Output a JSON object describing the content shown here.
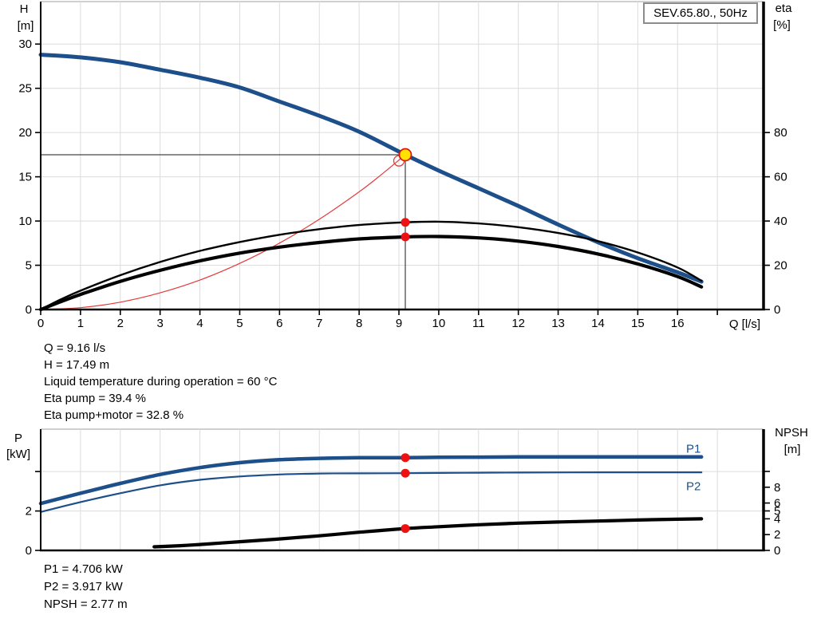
{
  "colors": {
    "curve_blue": "#1d4f8a",
    "marker_red": "#ee1111",
    "duty_yellow": "#ffe200",
    "system_red": "#e43a3a",
    "grid_gray": "#dcdcdc",
    "border_gray": "#b4b4b4",
    "axis_black": "#000000",
    "box_border_gray": "#8c8c8c"
  },
  "results_top": {
    "q": "Q = 9.16 l/s",
    "h": "H = 17.49 m",
    "temp": "Liquid temperature during operation = 60 °C",
    "eta_pump": "Eta pump = 39.4 %",
    "eta_pump_motor": "Eta pump+motor = 32.8 %"
  },
  "results_bottom": {
    "p1": "P1 = 4.706 kW",
    "p2": "P2 = 3.917 kW",
    "npsh": "NPSH = 2.77 m"
  },
  "chart_data": [
    {
      "id": "top",
      "type": "line",
      "title": "SEV.65.80., 50Hz",
      "x_axis": {
        "label": "Q [l/s]",
        "min": 0,
        "max": 18.16,
        "ticks": [
          {
            "v": 0,
            "t": "0"
          },
          {
            "v": 1,
            "t": "1"
          },
          {
            "v": 2,
            "t": "2"
          },
          {
            "v": 3,
            "t": "3"
          },
          {
            "v": 4,
            "t": "4"
          },
          {
            "v": 5,
            "t": "5"
          },
          {
            "v": 6,
            "t": "6"
          },
          {
            "v": 7,
            "t": "7"
          },
          {
            "v": 8,
            "t": "8"
          },
          {
            "v": 9,
            "t": "9"
          },
          {
            "v": 10,
            "t": "10"
          },
          {
            "v": 11,
            "t": "11"
          },
          {
            "v": 12,
            "t": "12"
          },
          {
            "v": 13,
            "t": "13"
          },
          {
            "v": 14,
            "t": "14"
          },
          {
            "v": 15,
            "t": "15"
          },
          {
            "v": 16,
            "t": "16"
          },
          {
            "v": 17,
            "t": ""
          }
        ],
        "grid": [
          1,
          2,
          3,
          4,
          5,
          6,
          7,
          8,
          9,
          10,
          11,
          12,
          13,
          14,
          15,
          16,
          17
        ]
      },
      "y_left": {
        "label_lines": [
          "H",
          "[m]"
        ],
        "min": 0,
        "max": 34.8,
        "ticks": [
          {
            "v": 0,
            "t": "0"
          },
          {
            "v": 5,
            "t": "5"
          },
          {
            "v": 10,
            "t": "10"
          },
          {
            "v": 15,
            "t": "15"
          },
          {
            "v": 20,
            "t": "20"
          },
          {
            "v": 25,
            "t": "25"
          },
          {
            "v": 30,
            "t": "30"
          }
        ],
        "grid": [
          5,
          10,
          15,
          20,
          25,
          30
        ]
      },
      "y_right": {
        "label_lines": [
          "eta",
          "[%]"
        ],
        "min": 0,
        "max": 139.2,
        "ticks": [
          {
            "v": 0,
            "t": "0"
          },
          {
            "v": 20,
            "t": "20"
          },
          {
            "v": 40,
            "t": "40"
          },
          {
            "v": 60,
            "t": "60"
          },
          {
            "v": 80,
            "t": "80"
          }
        ]
      },
      "guides": [
        {
          "name": "duty-h-guide",
          "type": "h",
          "v": 17.49,
          "q1": 0,
          "q2": 9.16
        },
        {
          "name": "duty-v-guide",
          "type": "v",
          "q": 9.16,
          "v1": 0,
          "v2": 17.49
        }
      ],
      "series": [
        {
          "name": "pump-head-curve",
          "axis": "left",
          "color": "#1d4f8a",
          "width": 5,
          "points": [
            [
              0,
              28.8
            ],
            [
              1,
              28.5
            ],
            [
              2,
              27.95
            ],
            [
              3,
              27.1
            ],
            [
              4,
              26.2
            ],
            [
              5,
              25.1
            ],
            [
              6,
              23.5
            ],
            [
              7,
              21.9
            ],
            [
              8,
              20.1
            ],
            [
              9.16,
              17.49
            ],
            [
              10,
              15.7
            ],
            [
              11,
              13.7
            ],
            [
              12,
              11.7
            ],
            [
              13,
              9.6
            ],
            [
              14,
              7.6
            ],
            [
              15,
              5.8
            ],
            [
              16,
              4.2
            ],
            [
              16.6,
              3.15
            ]
          ]
        },
        {
          "name": "system-curve",
          "axis": "left",
          "color": "#e43a3a",
          "width": 1.2,
          "points": [
            [
              0,
              0
            ],
            [
              1,
              0.21
            ],
            [
              2,
              0.83
            ],
            [
              3,
              1.88
            ],
            [
              4,
              3.33
            ],
            [
              5,
              5.21
            ],
            [
              6,
              7.5
            ],
            [
              7,
              10.2
            ],
            [
              8,
              13.3
            ],
            [
              8.6,
              15.4
            ],
            [
              9.16,
              17.49
            ]
          ]
        },
        {
          "name": "eta-pump-curve",
          "axis": "right",
          "color": "#000000",
          "width": 2.4,
          "points": [
            [
              0,
              0
            ],
            [
              0.5,
              4.5
            ],
            [
              1,
              8.5
            ],
            [
              2,
              15.5
            ],
            [
              3,
              21.5
            ],
            [
              4,
              26.5
            ],
            [
              5,
              30.5
            ],
            [
              6,
              33.8
            ],
            [
              7,
              36.3
            ],
            [
              8,
              38.2
            ],
            [
              9.16,
              39.4
            ],
            [
              10,
              39.7
            ],
            [
              11,
              38.9
            ],
            [
              12,
              37.2
            ],
            [
              13,
              34.6
            ],
            [
              14,
              30.9
            ],
            [
              15,
              25.8
            ],
            [
              16,
              19.0
            ],
            [
              16.6,
              13.0
            ]
          ]
        },
        {
          "name": "eta-pump-motor-curve",
          "axis": "right",
          "color": "#000000",
          "width": 4.2,
          "points": [
            [
              0,
              0
            ],
            [
              0.5,
              3.5
            ],
            [
              1,
              6.8
            ],
            [
              2,
              12.7
            ],
            [
              3,
              17.7
            ],
            [
              4,
              22.0
            ],
            [
              5,
              25.5
            ],
            [
              6,
              28.2
            ],
            [
              7,
              30.3
            ],
            [
              8,
              31.9
            ],
            [
              9.16,
              32.8
            ],
            [
              10,
              33.0
            ],
            [
              11,
              32.4
            ],
            [
              12,
              30.9
            ],
            [
              13,
              28.5
            ],
            [
              14,
              25.1
            ],
            [
              15,
              20.6
            ],
            [
              16,
              14.9
            ],
            [
              16.6,
              10.2
            ]
          ]
        }
      ],
      "markers": [
        {
          "name": "system-duty-ring",
          "axis": "left",
          "q": 9.0,
          "v": 16.8,
          "r": 6.5,
          "fill": "none",
          "stroke": "#e43a3a",
          "sw": 1.3,
          "interactable": false
        },
        {
          "name": "duty-point",
          "axis": "left",
          "q": 9.16,
          "v": 17.49,
          "r": 7.5,
          "fill": "#ffe200",
          "stroke": "#e01010",
          "sw": 1.7,
          "interactable": true
        },
        {
          "name": "eta-pump-duty-dot",
          "axis": "right",
          "q": 9.16,
          "v": 39.4,
          "r": 5.5,
          "fill": "#ee1111",
          "stroke": "none",
          "sw": 0,
          "interactable": false
        },
        {
          "name": "eta-pump-motor-duty-dot",
          "axis": "right",
          "q": 9.16,
          "v": 32.8,
          "r": 5.5,
          "fill": "#ee1111",
          "stroke": "none",
          "sw": 0,
          "interactable": false
        }
      ]
    },
    {
      "id": "bottom",
      "type": "line",
      "title": "",
      "x_axis": {
        "label": "",
        "min": 0,
        "max": 18.16,
        "ticks": [],
        "grid": [
          1,
          2,
          3,
          4,
          5,
          6,
          7,
          8,
          9,
          10,
          11,
          12,
          13,
          14,
          15,
          16,
          17
        ]
      },
      "y_left": {
        "label_lines": [
          "P",
          "[kW]"
        ],
        "min": 0,
        "max": 6.15,
        "ticks": [
          {
            "v": 0,
            "t": "0"
          },
          {
            "v": 2,
            "t": "2"
          },
          {
            "v": 4,
            "t": ""
          }
        ],
        "grid": [
          2,
          4
        ]
      },
      "y_right": {
        "label_lines": [
          "NPSH",
          "[m]"
        ],
        "min": 0,
        "max": 15.35,
        "ticks": [
          {
            "v": 0,
            "t": "0"
          },
          {
            "v": 2,
            "t": "2"
          },
          {
            "v": 4,
            "t": "4"
          },
          {
            "v": 5,
            "t": "5"
          },
          {
            "v": 6,
            "t": "6"
          },
          {
            "v": 8,
            "t": "8"
          },
          {
            "v": 10,
            "t": ""
          }
        ]
      },
      "guides": [],
      "series": [
        {
          "name": "p1-curve",
          "axis": "left",
          "color": "#1d4f8a",
          "width": 4.5,
          "label": {
            "text": "P1",
            "q": 16.4,
            "v": 4.95
          },
          "points": [
            [
              0,
              2.38
            ],
            [
              1,
              2.9
            ],
            [
              2,
              3.4
            ],
            [
              3,
              3.85
            ],
            [
              4,
              4.2
            ],
            [
              5,
              4.45
            ],
            [
              6,
              4.6
            ],
            [
              7,
              4.67
            ],
            [
              8,
              4.7
            ],
            [
              9.16,
              4.706
            ],
            [
              10,
              4.72
            ],
            [
              11,
              4.73
            ],
            [
              12,
              4.74
            ],
            [
              13,
              4.74
            ],
            [
              14,
              4.74
            ],
            [
              15,
              4.74
            ],
            [
              16,
              4.74
            ],
            [
              16.6,
              4.74
            ]
          ]
        },
        {
          "name": "p2-curve",
          "axis": "left",
          "color": "#1d4f8a",
          "width": 2.2,
          "label": {
            "text": "P2",
            "q": 16.4,
            "v": 3.05
          },
          "points": [
            [
              0,
              1.95
            ],
            [
              1,
              2.45
            ],
            [
              2,
              2.9
            ],
            [
              3,
              3.3
            ],
            [
              4,
              3.58
            ],
            [
              5,
              3.75
            ],
            [
              6,
              3.85
            ],
            [
              7,
              3.9
            ],
            [
              8,
              3.91
            ],
            [
              9.16,
              3.917
            ],
            [
              10,
              3.93
            ],
            [
              11,
              3.94
            ],
            [
              12,
              3.95
            ],
            [
              14,
              3.96
            ],
            [
              16,
              3.96
            ],
            [
              16.6,
              3.96
            ]
          ]
        },
        {
          "name": "npsh-curve",
          "axis": "right",
          "color": "#000000",
          "width": 4.2,
          "points": [
            [
              2.85,
              0.45
            ],
            [
              3.5,
              0.6
            ],
            [
              4,
              0.75
            ],
            [
              5,
              1.1
            ],
            [
              6,
              1.45
            ],
            [
              7,
              1.85
            ],
            [
              8,
              2.3
            ],
            [
              9.16,
              2.77
            ],
            [
              10,
              3.0
            ],
            [
              11,
              3.25
            ],
            [
              12,
              3.45
            ],
            [
              13,
              3.6
            ],
            [
              14,
              3.72
            ],
            [
              15,
              3.85
            ],
            [
              16,
              3.95
            ],
            [
              16.6,
              4.0
            ]
          ]
        }
      ],
      "markers": [
        {
          "name": "p1-duty-dot",
          "axis": "left",
          "q": 9.16,
          "v": 4.706,
          "r": 5.5,
          "fill": "#ee1111",
          "stroke": "none",
          "sw": 0,
          "interactable": false
        },
        {
          "name": "p2-duty-dot",
          "axis": "left",
          "q": 9.16,
          "v": 3.917,
          "r": 5.5,
          "fill": "#ee1111",
          "stroke": "none",
          "sw": 0,
          "interactable": false
        },
        {
          "name": "npsh-duty-dot",
          "axis": "right",
          "q": 9.16,
          "v": 2.77,
          "r": 5.5,
          "fill": "#ee1111",
          "stroke": "none",
          "sw": 0,
          "interactable": false
        }
      ]
    }
  ]
}
